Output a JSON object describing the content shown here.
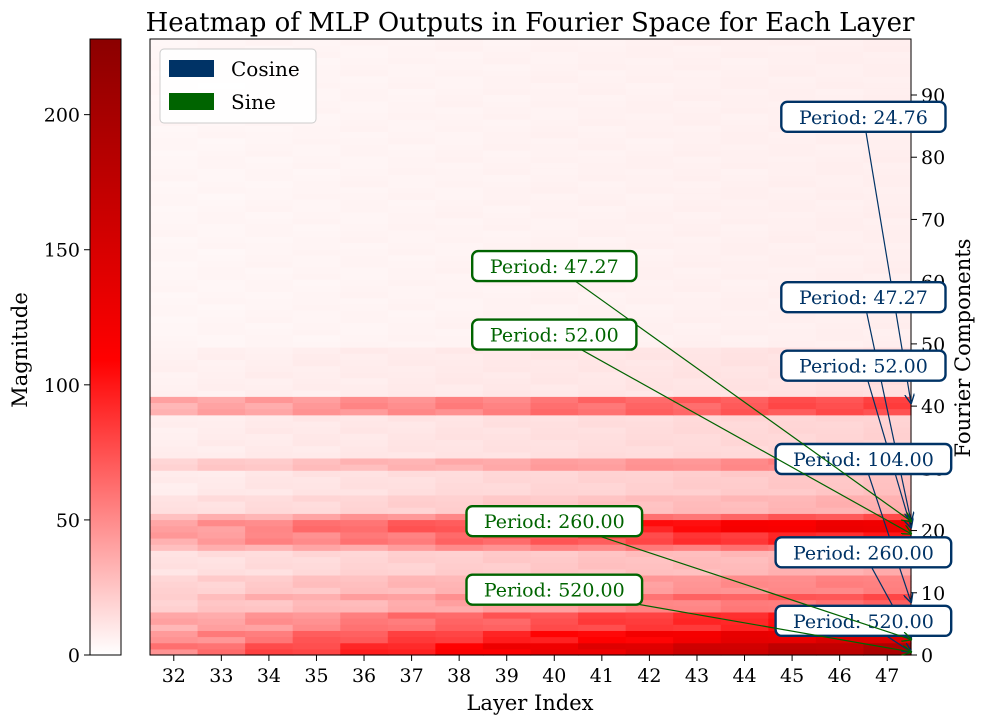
{
  "chart_data": {
    "type": "heatmap",
    "title": "Heatmap of MLP Outputs in Fourier Space for Each Layer",
    "xlabel": "Layer Index",
    "ylabel": "Fourier Components",
    "x_categories": [
      32,
      33,
      34,
      35,
      36,
      37,
      38,
      39,
      40,
      41,
      42,
      43,
      44,
      45,
      46,
      47
    ],
    "yticks": [
      0,
      10,
      20,
      30,
      40,
      50,
      60,
      70,
      80,
      90
    ],
    "ylim": [
      0,
      99
    ],
    "colorbar": {
      "label": "Magnitude",
      "ticks": [
        0,
        50,
        100,
        150,
        200
      ],
      "range": [
        0,
        228
      ],
      "colors": [
        "#ffffff",
        "#ff0000",
        "#8b0000"
      ]
    },
    "legend": {
      "placement": "top-left",
      "entries": [
        {
          "label": "Cosine",
          "color": "#003366"
        },
        {
          "label": "Sine",
          "color": "#006400"
        }
      ]
    },
    "bands": [
      {
        "rows": [
          0,
          1
        ],
        "base": 55,
        "growth": 9
      },
      {
        "rows": [
          2,
          3
        ],
        "base": 45,
        "growth": 7
      },
      {
        "rows": [
          4,
          6
        ],
        "base": 35,
        "growth": 5
      },
      {
        "rows": [
          7,
          8
        ],
        "base": 20,
        "growth": 3
      },
      {
        "rows": [
          9,
          9
        ],
        "base": 25,
        "growth": 3.5
      },
      {
        "rows": [
          10,
          12
        ],
        "base": 18,
        "growth": 2.5
      },
      {
        "rows": [
          13,
          16
        ],
        "base": 12,
        "growth": 1.5
      },
      {
        "rows": [
          17,
          17
        ],
        "base": 30,
        "growth": 2.5
      },
      {
        "rows": [
          18,
          19
        ],
        "base": 40,
        "growth": 4
      },
      {
        "rows": [
          20,
          21
        ],
        "base": 40,
        "growth": 6
      },
      {
        "rows": [
          22,
          22
        ],
        "base": 30,
        "growth": 3
      },
      {
        "rows": [
          23,
          25
        ],
        "base": 12,
        "growth": 1.5
      },
      {
        "rows": [
          26,
          29
        ],
        "base": 8,
        "growth": 1.2
      },
      {
        "rows": [
          30,
          31
        ],
        "base": 20,
        "growth": 2.5
      },
      {
        "rows": [
          32,
          38
        ],
        "base": 7,
        "growth": 0.8
      },
      {
        "rows": [
          39,
          41
        ],
        "base": 35,
        "growth": 3
      },
      {
        "rows": [
          42,
          49
        ],
        "base": 6,
        "growth": 0.5
      },
      {
        "rows": [
          50,
          99
        ],
        "base": 4,
        "growth": 0.2
      }
    ],
    "annotations": [
      {
        "text": "Period: 24.76",
        "type": "Cosine",
        "target": [
          47.5,
          40.5
        ],
        "label_pos": [
          46.5,
          86.5
        ]
      },
      {
        "text": "Period: 47.27",
        "type": "Cosine",
        "target": [
          47.5,
          21.5
        ],
        "label_pos": [
          46.5,
          57.5
        ]
      },
      {
        "text": "Period: 52.00",
        "type": "Cosine",
        "target": [
          47.5,
          20.5
        ],
        "label_pos": [
          46.5,
          46.5
        ]
      },
      {
        "text": "Period: 104.00",
        "type": "Cosine",
        "target": [
          47.5,
          8.5
        ],
        "label_pos": [
          46.5,
          31.5
        ]
      },
      {
        "text": "Period: 260.00",
        "type": "Cosine",
        "target": [
          47.5,
          2.5
        ],
        "label_pos": [
          46.5,
          16.5
        ]
      },
      {
        "text": "Period: 520.00",
        "type": "Cosine",
        "target": [
          47.5,
          0.5
        ],
        "label_pos": [
          46.5,
          5.5
        ]
      },
      {
        "text": "Period: 47.27",
        "type": "Sine",
        "target": [
          47.5,
          21.5
        ],
        "label_pos": [
          40.0,
          62.5
        ]
      },
      {
        "text": "Period: 52.00",
        "type": "Sine",
        "target": [
          47.5,
          19.5
        ],
        "label_pos": [
          40.0,
          51.5
        ]
      },
      {
        "text": "Period: 260.00",
        "type": "Sine",
        "target": [
          47.5,
          2.5
        ],
        "label_pos": [
          40.0,
          21.5
        ]
      },
      {
        "text": "Period: 520.00",
        "type": "Sine",
        "target": [
          47.5,
          0.5
        ],
        "label_pos": [
          40.0,
          10.5
        ]
      }
    ]
  }
}
